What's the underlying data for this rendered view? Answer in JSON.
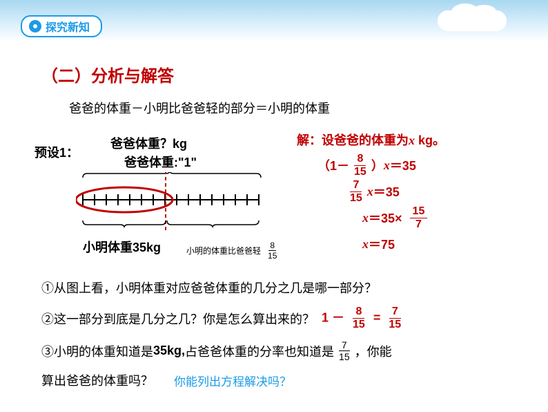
{
  "header": {
    "badge_text": "探究新知"
  },
  "title": "（二）分析与解答",
  "relation": "爸爸的体重－小明比爸爸轻的部分＝小明的体重",
  "preset_label": "预设1：",
  "diagram": {
    "label_top1": "爸爸体重？kg",
    "label_top2": "爸爸体重:\"1\"",
    "bottom_label": "小明体重35kg",
    "annot_text": "小明的体重比爸爸轻",
    "annot_frac_num": "8",
    "annot_frac_den": "15",
    "total_ticks": 15,
    "highlight_ticks": 7,
    "tick_spacing": 17,
    "bar_color": "#000000",
    "highlight_color": "#c00000",
    "dash_color": "#c00000"
  },
  "equations": {
    "intro": "解：设爸爸的体重为",
    "intro_suffix": " kg。",
    "var": "x",
    "line2_prefix": "（1－",
    "line2_frac_num": "8",
    "line2_frac_den": "15",
    "line2_suffix": "）",
    "eq_rhs1": "＝35",
    "line3_frac_num": "7",
    "line3_frac_den": "15",
    "line3_rhs": "＝35",
    "line4_mid": "＝35×",
    "line4_frac_num": "15",
    "line4_frac_den": "7",
    "line5": "＝75",
    "color": "#c00000"
  },
  "questions": {
    "q1": "①从图上看，小明体重对应爸爸体重的几分之几是哪一部分？",
    "q2": "②这一部分到底是几分之几？你是怎么算出来的？",
    "q2_ans_prefix": "1 －",
    "q2_f1_num": "8",
    "q2_f1_den": "15",
    "q2_eq": "=",
    "q2_f2_num": "7",
    "q2_f2_den": "15",
    "q3_a": "③小明的体重知道是",
    "q3_b": "35kg,",
    "q3_c": "占爸爸体重的分率也知道是",
    "q3_frac_num": "7",
    "q3_frac_den": "15",
    "q3_d": "，你能",
    "q3_e": "算出爸爸的体重吗？",
    "q3_link": "你能列出方程解决吗？"
  },
  "colors": {
    "title": "#c00000",
    "badge": "#1a9be8",
    "text": "#000000"
  }
}
